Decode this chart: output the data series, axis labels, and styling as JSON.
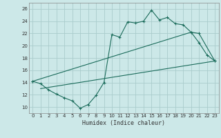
{
  "xlabel": "Humidex (Indice chaleur)",
  "bg_color": "#cce8e8",
  "grid_color": "#aacccc",
  "line_color": "#1a6b5a",
  "xlim": [
    -0.5,
    23.5
  ],
  "ylim": [
    9.0,
    27.0
  ],
  "xticks": [
    0,
    1,
    2,
    3,
    4,
    5,
    6,
    7,
    8,
    9,
    10,
    11,
    12,
    13,
    14,
    15,
    16,
    17,
    18,
    19,
    20,
    21,
    22,
    23
  ],
  "yticks": [
    10,
    12,
    14,
    16,
    18,
    20,
    22,
    24,
    26
  ],
  "curve1_x": [
    0,
    1,
    2,
    3,
    4,
    5,
    6,
    7,
    8,
    9,
    10,
    11,
    12,
    13,
    14,
    15,
    16,
    17,
    18,
    19,
    20,
    21,
    22,
    23
  ],
  "curve1_y": [
    14.2,
    13.8,
    12.8,
    12.1,
    11.5,
    11.0,
    9.8,
    10.4,
    11.9,
    14.0,
    21.8,
    21.4,
    23.9,
    23.7,
    24.0,
    25.8,
    24.2,
    24.6,
    23.6,
    23.4,
    22.2,
    20.5,
    18.5,
    17.5
  ],
  "curve2_x": [
    0,
    20,
    21,
    23
  ],
  "curve2_y": [
    14.2,
    22.2,
    22.0,
    17.5
  ],
  "curve3_x": [
    1,
    23
  ],
  "curve3_y": [
    13.0,
    17.5
  ]
}
